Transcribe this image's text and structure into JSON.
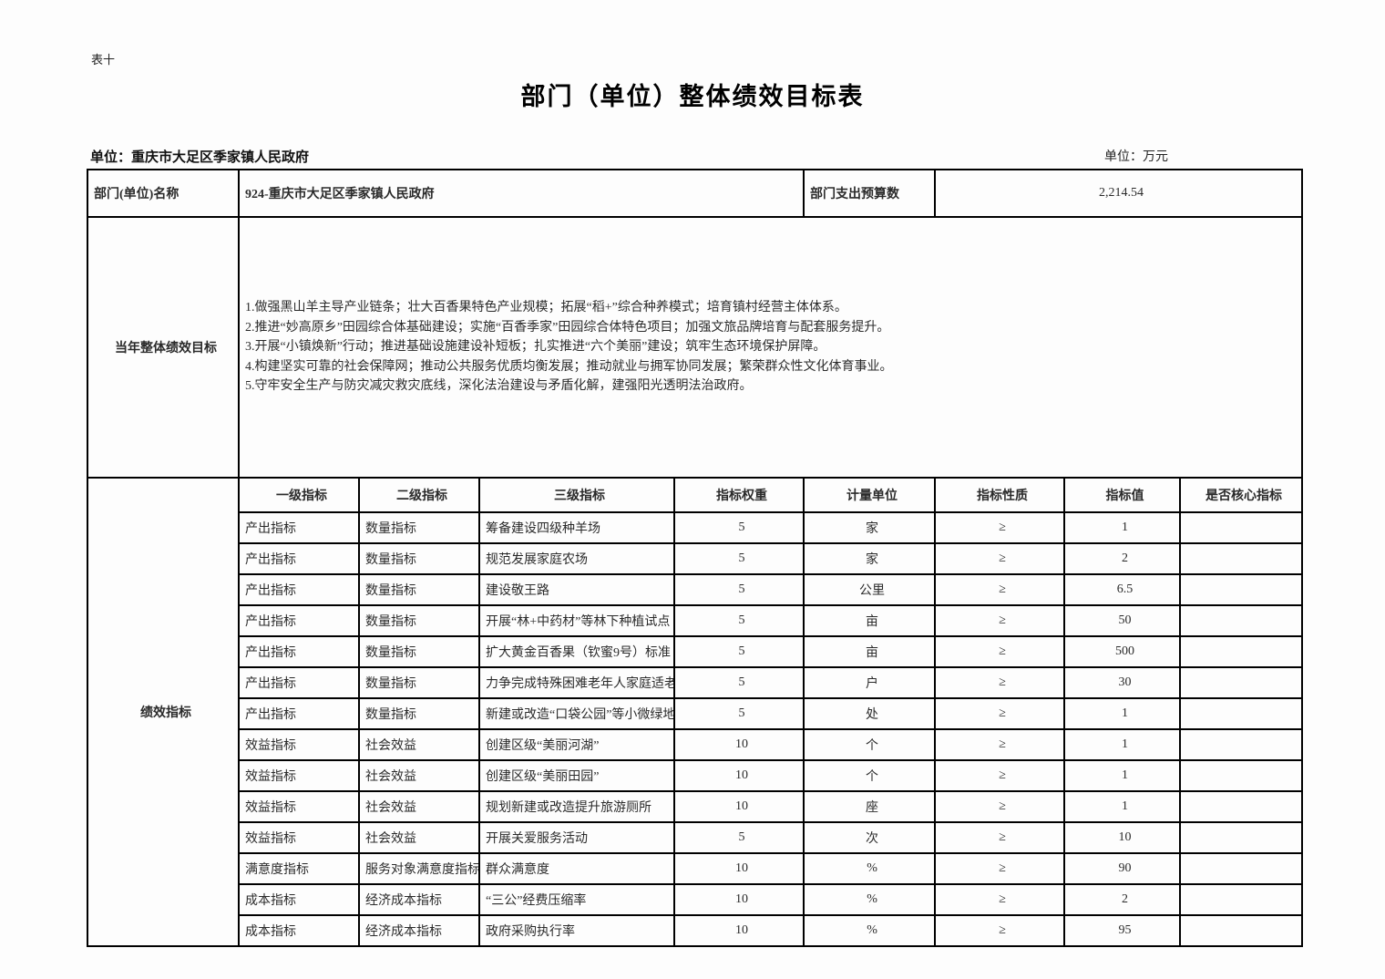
{
  "page": {
    "table_label": "表十",
    "title": "部门（单位）整体绩效目标表",
    "unit_left": "单位：重庆市大足区季家镇人民政府",
    "unit_right": "单位：万元"
  },
  "dept": {
    "name_label": "部门(单位)名称",
    "name_value": "924-重庆市大足区季家镇人民政府",
    "budget_label": "部门支出预算数",
    "budget_value": "2,214.54"
  },
  "goals": {
    "label": "当年整体绩效目标",
    "lines": [
      "1.做强黑山羊主导产业链条；壮大百香果特色产业规模；拓展“稻+”综合种养模式；培育镇村经营主体体系。",
      "2.推进“妙高原乡”田园综合体基础建设；实施“百香季家”田园综合体特色项目；加强文旅品牌培育与配套服务提升。",
      "3.开展“小镇焕新”行动；推进基础设施建设补短板；扎实推进“六个美丽”建设；筑牢生态环境保护屏障。",
      "4.构建坚实可靠的社会保障网；推动公共服务优质均衡发展；推动就业与拥军协同发展；繁荣群众性文化体育事业。",
      "5.守牢安全生产与防灾减灾救灾底线，深化法治建设与矛盾化解，建强阳光透明法治政府。"
    ]
  },
  "indicators": {
    "label": "绩效指标",
    "columns": [
      "一级指标",
      "二级指标",
      "三级指标",
      "指标权重",
      "计量单位",
      "指标性质",
      "指标值",
      "是否核心指标"
    ],
    "rows": [
      {
        "level1": "产出指标",
        "level2": "数量指标",
        "level3": "筹备建设四级种羊场",
        "weight": "5",
        "unit": "家",
        "nature": "≥",
        "value": "1",
        "core": ""
      },
      {
        "level1": "产出指标",
        "level2": "数量指标",
        "level3": "规范发展家庭农场",
        "weight": "5",
        "unit": "家",
        "nature": "≥",
        "value": "2",
        "core": ""
      },
      {
        "level1": "产出指标",
        "level2": "数量指标",
        "level3": "建设敬王路",
        "weight": "5",
        "unit": "公里",
        "nature": "≥",
        "value": "6.5",
        "core": ""
      },
      {
        "level1": "产出指标",
        "level2": "数量指标",
        "level3": "开展“林+中药材”等林下种植试点",
        "weight": "5",
        "unit": "亩",
        "nature": "≥",
        "value": "50",
        "core": ""
      },
      {
        "level1": "产出指标",
        "level2": "数量指标",
        "level3": "扩大黄金百香果（钦蜜9号）标准",
        "weight": "5",
        "unit": "亩",
        "nature": "≥",
        "value": "500",
        "core": ""
      },
      {
        "level1": "产出指标",
        "level2": "数量指标",
        "level3": "力争完成特殊困难老年人家庭适老",
        "weight": "5",
        "unit": "户",
        "nature": "≥",
        "value": "30",
        "core": ""
      },
      {
        "level1": "产出指标",
        "level2": "数量指标",
        "level3": "新建或改造“口袋公园”等小微绿地",
        "weight": "5",
        "unit": "处",
        "nature": "≥",
        "value": "1",
        "core": ""
      },
      {
        "level1": "效益指标",
        "level2": "社会效益",
        "level3": "创建区级“美丽河湖”",
        "weight": "10",
        "unit": "个",
        "nature": "≥",
        "value": "1",
        "core": ""
      },
      {
        "level1": "效益指标",
        "level2": "社会效益",
        "level3": "创建区级“美丽田园”",
        "weight": "10",
        "unit": "个",
        "nature": "≥",
        "value": "1",
        "core": ""
      },
      {
        "level1": "效益指标",
        "level2": "社会效益",
        "level3": "规划新建或改造提升旅游厕所",
        "weight": "10",
        "unit": "座",
        "nature": "≥",
        "value": "1",
        "core": ""
      },
      {
        "level1": "效益指标",
        "level2": "社会效益",
        "level3": "开展关爱服务活动",
        "weight": "5",
        "unit": "次",
        "nature": "≥",
        "value": "10",
        "core": ""
      },
      {
        "level1": "满意度指标",
        "level2": "服务对象满意度指标",
        "level3": "群众满意度",
        "weight": "10",
        "unit": "%",
        "nature": "≥",
        "value": "90",
        "core": ""
      },
      {
        "level1": "成本指标",
        "level2": "经济成本指标",
        "level3": "“三公”经费压缩率",
        "weight": "10",
        "unit": "%",
        "nature": "≥",
        "value": "2",
        "core": ""
      },
      {
        "level1": "成本指标",
        "level2": "经济成本指标",
        "level3": "政府采购执行率",
        "weight": "10",
        "unit": "%",
        "nature": "≥",
        "value": "95",
        "core": ""
      }
    ]
  }
}
